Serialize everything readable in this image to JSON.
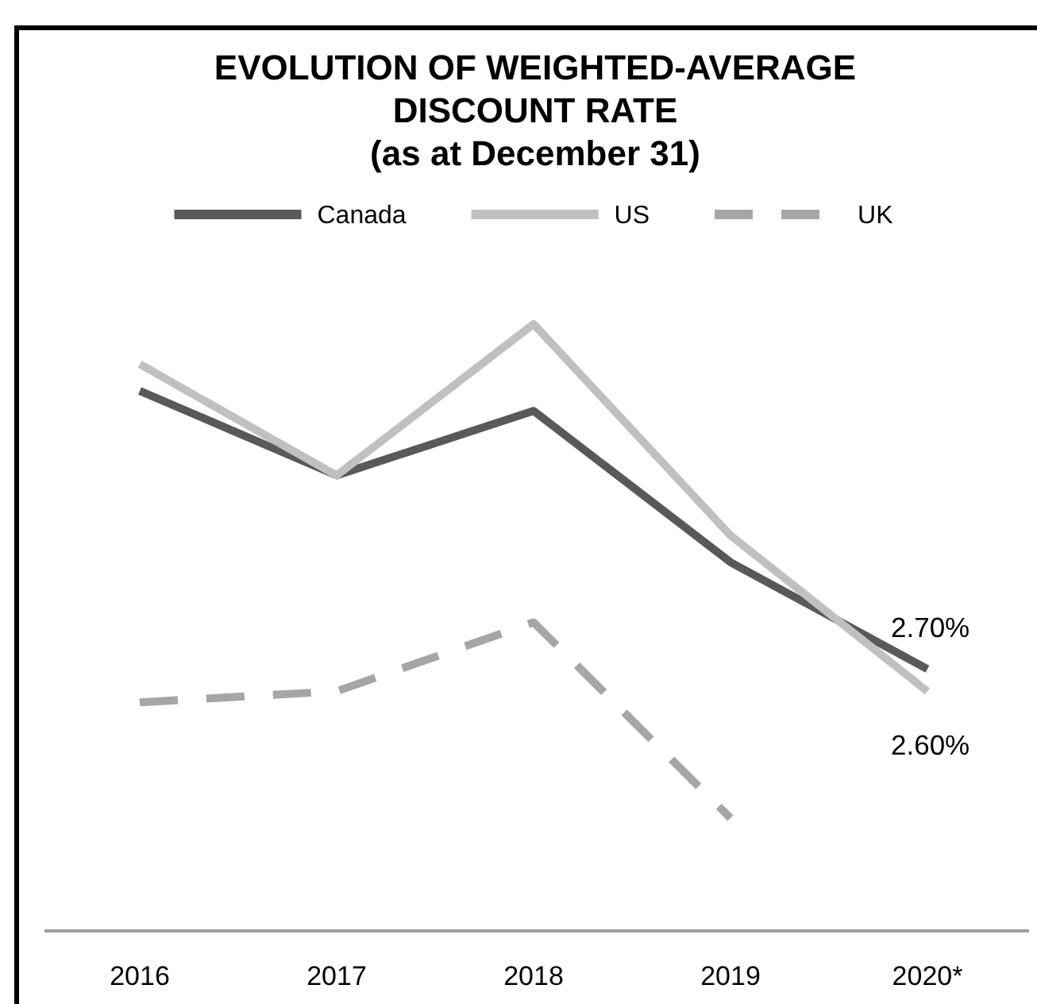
{
  "chart_data": {
    "type": "line",
    "title": "EVOLUTION OF WEIGHTED-AVERAGE DISCOUNT RATE",
    "subtitle": "(as at December 31)",
    "categories": [
      "2016",
      "2017",
      "2018",
      "2019",
      "2020*"
    ],
    "series": [
      {
        "name": "Canada",
        "color": "#595959",
        "values": [
          3.95,
          3.57,
          3.86,
          3.18,
          2.7
        ],
        "value_labels": [
          null,
          null,
          null,
          null,
          "2.70%"
        ]
      },
      {
        "name": "US",
        "color": "#c0c0c0",
        "values": [
          4.07,
          3.57,
          4.25,
          3.3,
          2.6
        ],
        "value_labels": [
          null,
          null,
          null,
          null,
          "2.60%"
        ]
      },
      {
        "name": "UK",
        "color": "#a6a6a6",
        "values": [
          2.55,
          2.6,
          2.91,
          2.03,
          null
        ],
        "line_style": "dashed"
      }
    ],
    "tick_labels": "x",
    "legend": "top"
  }
}
